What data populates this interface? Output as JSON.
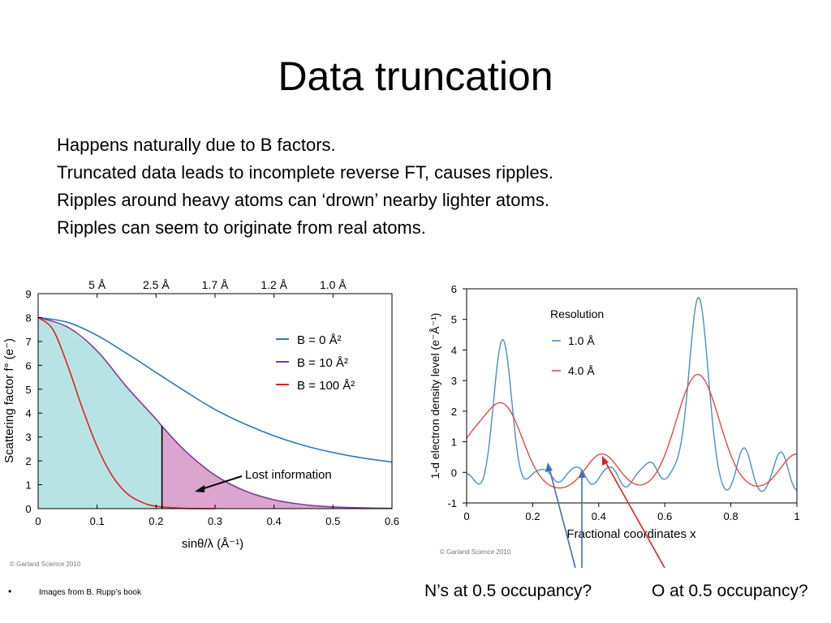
{
  "slide": {
    "title": "Data truncation",
    "bullets": [
      "Happens naturally due to B factors.",
      "Truncated data leads to incomplete reverse FT, causes ripples.",
      "Ripples around heavy atoms can ‘drown’ nearby lighter atoms.",
      "Ripples can seem to originate from real atoms."
    ],
    "footnote_bullet": "•",
    "footnote": "Images from B. Rupp’s book",
    "question_n": "N’s at 0.5 occupancy?",
    "question_o": "O at 0.5 occupancy?",
    "colors": {
      "arrow_blue": "#3f6fb5",
      "arrow_red": "#e02020"
    }
  },
  "chart_data": [
    {
      "type": "line",
      "xlabel": "sinθ/λ (Å⁻¹)",
      "ylabel": "Scattering factor f° (e⁻)",
      "xlim": [
        0,
        0.6
      ],
      "ylim": [
        0,
        9
      ],
      "x_ticks": [
        "0",
        "0.1",
        "0.2",
        "0.3",
        "0.4",
        "0.5",
        "0.6"
      ],
      "y_ticks": [
        "0",
        "1",
        "2",
        "3",
        "4",
        "5",
        "6",
        "7",
        "8",
        "9"
      ],
      "top_axis_ticks": [
        {
          "x": 0.1,
          "label": "5 Å"
        },
        {
          "x": 0.2,
          "label": "2.5 Å"
        },
        {
          "x": 0.3,
          "label": "1.7 Å"
        },
        {
          "x": 0.4,
          "label": "1.2 Å"
        },
        {
          "x": 0.5,
          "label": "1.0 Å"
        }
      ],
      "legend_position": "right",
      "series": [
        {
          "name": "B = 0 Å²",
          "color": "#2a7ab9",
          "x": [
            0,
            0.05,
            0.1,
            0.15,
            0.2,
            0.25,
            0.3,
            0.35,
            0.4,
            0.45,
            0.5,
            0.55,
            0.6
          ],
          "y": [
            8.0,
            7.8,
            7.25,
            6.5,
            5.7,
            4.9,
            4.15,
            3.55,
            3.05,
            2.65,
            2.35,
            2.12,
            1.95
          ]
        },
        {
          "name": "B = 10 Å²",
          "color": "#7b3d98",
          "x": [
            0,
            0.05,
            0.1,
            0.15,
            0.2,
            0.21,
            0.25,
            0.3,
            0.35,
            0.4,
            0.45,
            0.5,
            0.55,
            0.6
          ],
          "y": [
            8.0,
            7.6,
            6.6,
            5.1,
            3.75,
            3.45,
            2.4,
            1.4,
            0.75,
            0.37,
            0.17,
            0.07,
            0.03,
            0.01
          ]
        },
        {
          "name": "B = 100 Å²",
          "color": "#e02424",
          "x": [
            0,
            0.025,
            0.05,
            0.075,
            0.1,
            0.125,
            0.15,
            0.175,
            0.2,
            0.25,
            0.3
          ],
          "y": [
            8.0,
            7.5,
            6.0,
            4.2,
            2.6,
            1.4,
            0.65,
            0.28,
            0.1,
            0.01,
            0.0
          ]
        }
      ],
      "truncation_x": 0.21,
      "annotations": [
        "Lost information"
      ],
      "colors": {
        "retained_fill": "#b8e3e4",
        "lost_fill": "#dca5cf"
      },
      "copyright": "© Garland Science 2010"
    },
    {
      "type": "line",
      "xlabel": "Fractional coordinates x",
      "ylabel": "1-d electron density level (e⁻Å⁻¹)",
      "xlim": [
        0,
        1
      ],
      "ylim": [
        -1,
        6
      ],
      "x_ticks": [
        "0",
        "0.2",
        "0.4",
        "0.6",
        "0.8",
        "1"
      ],
      "y_ticks": [
        "-1",
        "0",
        "1",
        "2",
        "3",
        "4",
        "5",
        "6"
      ],
      "legend_title": "Resolution",
      "legend_position": "top-left",
      "series": [
        {
          "name": "1.0 Å",
          "color": "#4a8fc4",
          "peaks": [
            {
              "x": 0.11,
              "height": 4.4,
              "width": 0.028
            },
            {
              "x": 0.7,
              "height": 6.2,
              "width": 0.028
            },
            {
              "x": 0.25,
              "height": 0.55,
              "width": 0.02
            },
            {
              "x": 0.35,
              "height": 0.55,
              "width": 0.02
            },
            {
              "x": 0.45,
              "height": 0.45,
              "width": 0.02
            },
            {
              "x": 0.565,
              "height": 0.85,
              "width": 0.02
            },
            {
              "x": 0.84,
              "height": 0.85,
              "width": 0.02
            },
            {
              "x": 0.955,
              "height": 0.75,
              "width": 0.02
            }
          ],
          "baseline": -0.35,
          "ripple_amplitude": 0.3,
          "ripple_period": 0.105
        },
        {
          "name": "4.0 Å",
          "color": "#e24a4a",
          "peaks": [
            {
              "x": 0.11,
              "height": 2.75,
              "width": 0.06
            },
            {
              "x": 0.7,
              "height": 3.8,
              "width": 0.065
            },
            {
              "x": 0.41,
              "height": 1.2,
              "width": 0.05
            },
            {
              "x": 0.0,
              "height": 1.2,
              "width": 0.05
            },
            {
              "x": 1.0,
              "height": 1.2,
              "width": 0.05
            }
          ],
          "baseline": -0.6,
          "ripple_amplitude": 0.0,
          "ripple_period": 0.2
        }
      ],
      "copyright": "© Garland Science 2010"
    }
  ]
}
